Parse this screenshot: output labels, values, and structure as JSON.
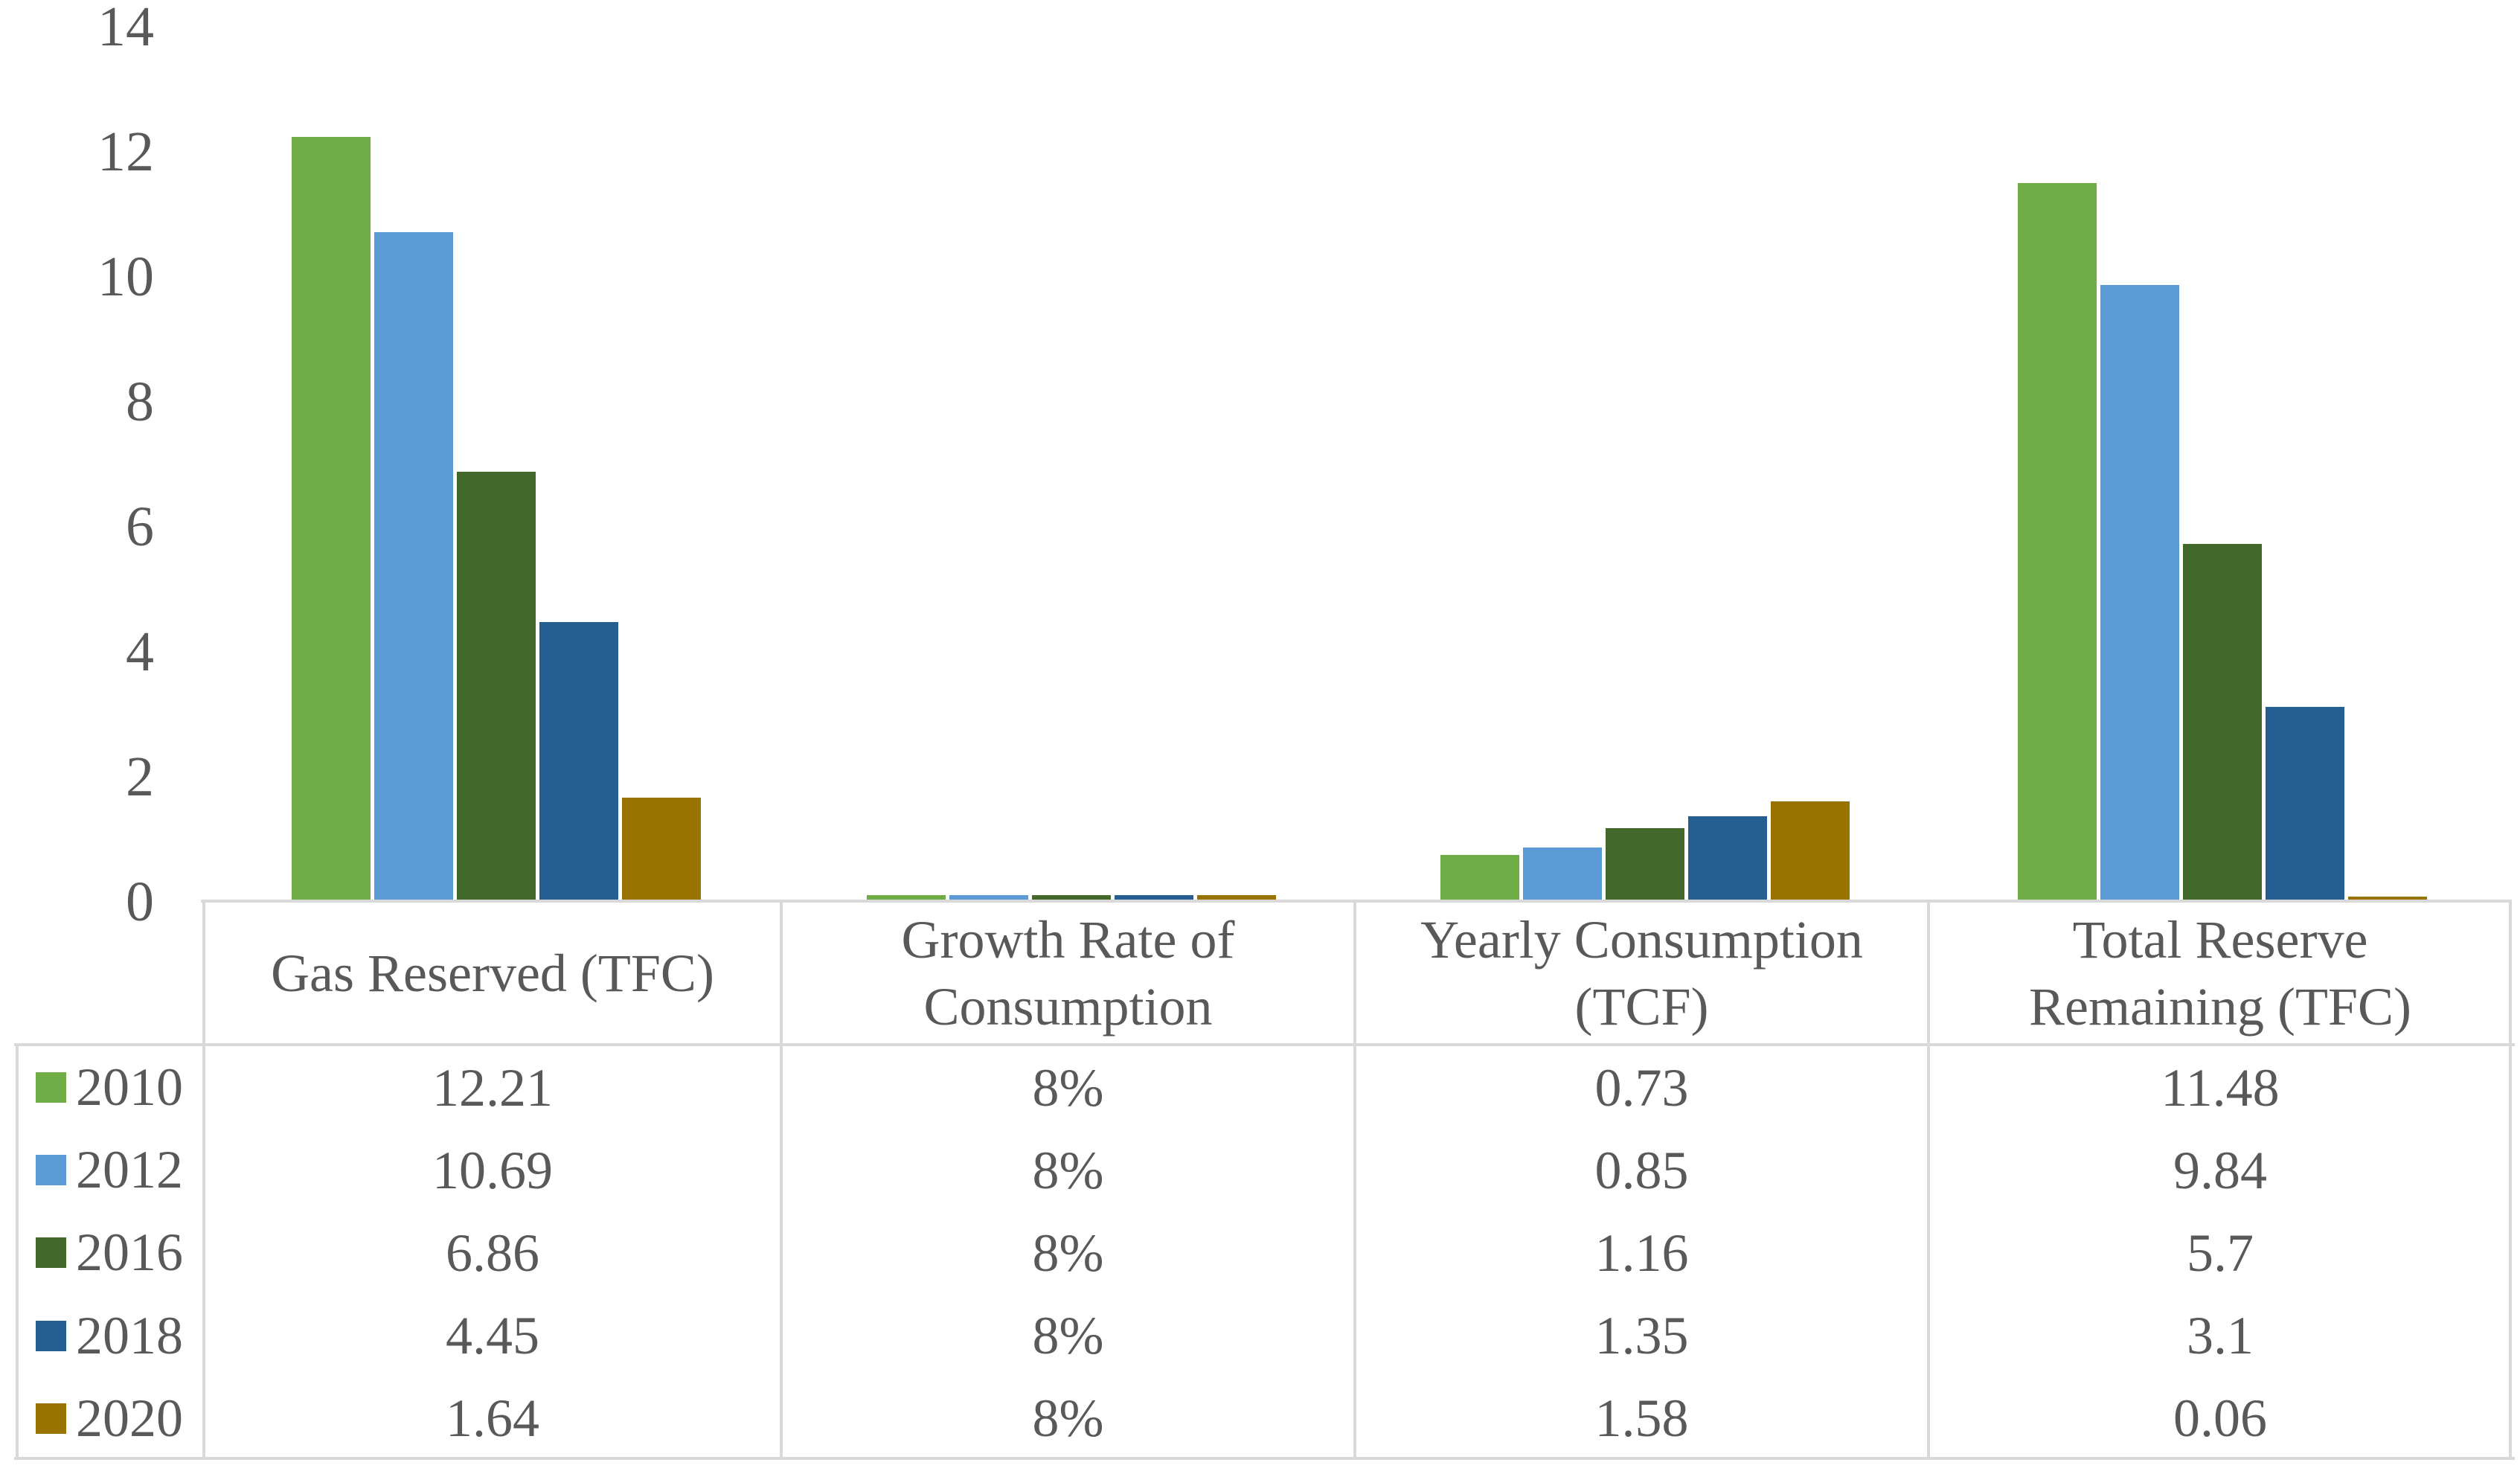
{
  "window": {
    "background": "#FFFFFF"
  },
  "colors": {
    "text": "#595959",
    "border": "#D9D9D9"
  },
  "chart_data": {
    "type": "bar",
    "title": "",
    "xlabel": "",
    "ylabel": "",
    "grid": false,
    "legend_position": "data-table-left-column",
    "data_table_shown": true,
    "y_axis": {
      "min": 0,
      "max": 14,
      "step": 2,
      "ticks": [
        "0",
        "2",
        "4",
        "6",
        "8",
        "10",
        "12",
        "14"
      ]
    },
    "categories": [
      "Gas Reserved (TFC)",
      "Growth Rate of Consumption",
      "Yearly Consumption (TCF)",
      "Total Reserve Remaining (TFC)"
    ],
    "series": [
      {
        "name": "2010",
        "color": "#70AD47",
        "values": [
          12.21,
          0.08,
          0.73,
          11.48
        ],
        "display": [
          "12.21",
          "8%",
          "0.73",
          "11.48"
        ]
      },
      {
        "name": "2012",
        "color": "#5B9BD5",
        "values": [
          10.69,
          0.08,
          0.85,
          9.84
        ],
        "display": [
          "10.69",
          "8%",
          "0.85",
          "9.84"
        ]
      },
      {
        "name": "2016",
        "color": "#43682B",
        "values": [
          6.86,
          0.08,
          1.16,
          5.7
        ],
        "display": [
          "6.86",
          "8%",
          "1.16",
          "5.7"
        ]
      },
      {
        "name": "2018",
        "color": "#255E91",
        "values": [
          4.45,
          0.08,
          1.35,
          3.1
        ],
        "display": [
          "4.45",
          "8%",
          "1.35",
          "3.1"
        ]
      },
      {
        "name": "2020",
        "color": "#997300",
        "values": [
          1.64,
          0.08,
          1.58,
          0.06
        ],
        "display": [
          "1.64",
          "8%",
          "1.58",
          "0.06"
        ]
      }
    ]
  }
}
